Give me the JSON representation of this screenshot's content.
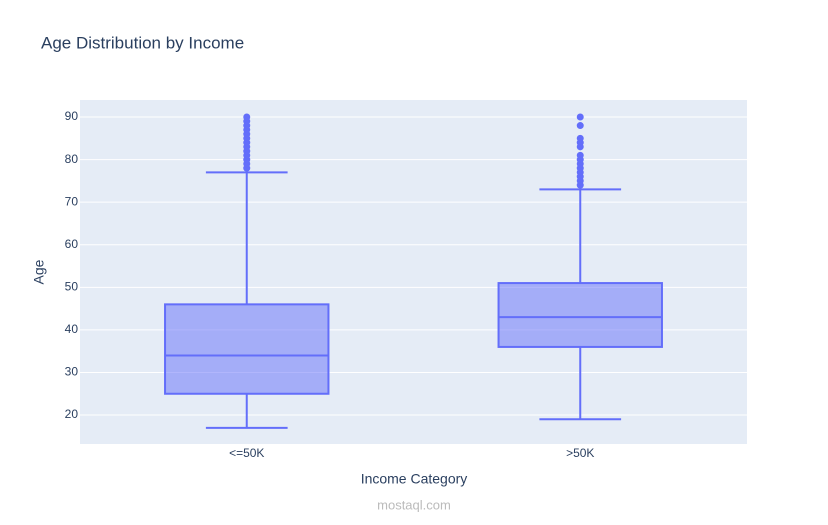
{
  "chart_data": {
    "type": "box",
    "title": "Age Distribution by Income",
    "x_label": "Income Category",
    "y_label": "Age",
    "categories": [
      "<=50K",
      ">50K"
    ],
    "color": "#636efa",
    "boxes": [
      {
        "min": 17,
        "q1": 25,
        "median": 34,
        "q3": 46,
        "max": 77,
        "outliers": [
          78,
          79,
          80,
          81,
          82,
          83,
          84,
          85,
          86,
          87,
          88,
          89,
          90
        ]
      },
      {
        "min": 19,
        "q1": 36,
        "median": 43,
        "q3": 51,
        "max": 73,
        "outliers": [
          74,
          75,
          76,
          77,
          78,
          79,
          80,
          81,
          83,
          84,
          85,
          88,
          90
        ]
      }
    ],
    "ylim": [
      13.2,
      94
    ],
    "yticks": [
      20,
      30,
      40,
      50,
      60,
      70,
      80,
      90
    ],
    "grid": true,
    "watermark": "mostaql.com"
  }
}
